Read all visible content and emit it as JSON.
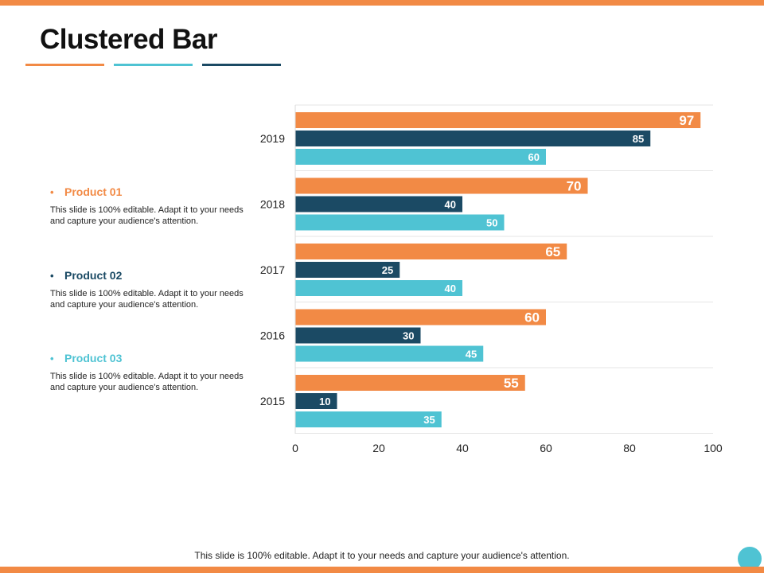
{
  "slide": {
    "title": "Clustered Bar",
    "footer": "This slide is 100% editable. Adapt it to your needs and capture your audience's attention."
  },
  "legend": [
    {
      "label": "Product 01",
      "bullet": "•",
      "description": "This slide is 100% editable. Adapt it to your needs and capture your audience's attention.",
      "color": "#F28A45"
    },
    {
      "label": "Product 02",
      "bullet": "•",
      "description": "This slide is 100% editable. Adapt it to your needs and capture your audience's attention.",
      "color": "#1B4A64"
    },
    {
      "label": "Product 03",
      "bullet": "•",
      "description": "This slide is 100% editable. Adapt it to your needs and capture your audience's attention.",
      "color": "#4FC3D3"
    }
  ],
  "colors": {
    "accent_orange": "#F28A45",
    "accent_teal": "#4FC3D3",
    "accent_navy": "#1B4A64"
  },
  "chart_data": {
    "type": "bar",
    "orientation": "horizontal",
    "title": "",
    "xlabel": "",
    "ylabel": "",
    "categories": [
      "2019",
      "2018",
      "2017",
      "2016",
      "2015"
    ],
    "series": [
      {
        "name": "Product 01",
        "color": "#F28A45",
        "values": [
          97,
          70,
          65,
          60,
          55
        ]
      },
      {
        "name": "Product 02",
        "color": "#1B4A64",
        "values": [
          85,
          40,
          25,
          30,
          10
        ]
      },
      {
        "name": "Product 03",
        "color": "#4FC3D3",
        "values": [
          60,
          50,
          40,
          45,
          35
        ]
      }
    ],
    "xlim": [
      0,
      100
    ],
    "xticks": [
      0,
      20,
      40,
      60,
      80,
      100
    ],
    "grid": true,
    "data_labels": true
  }
}
